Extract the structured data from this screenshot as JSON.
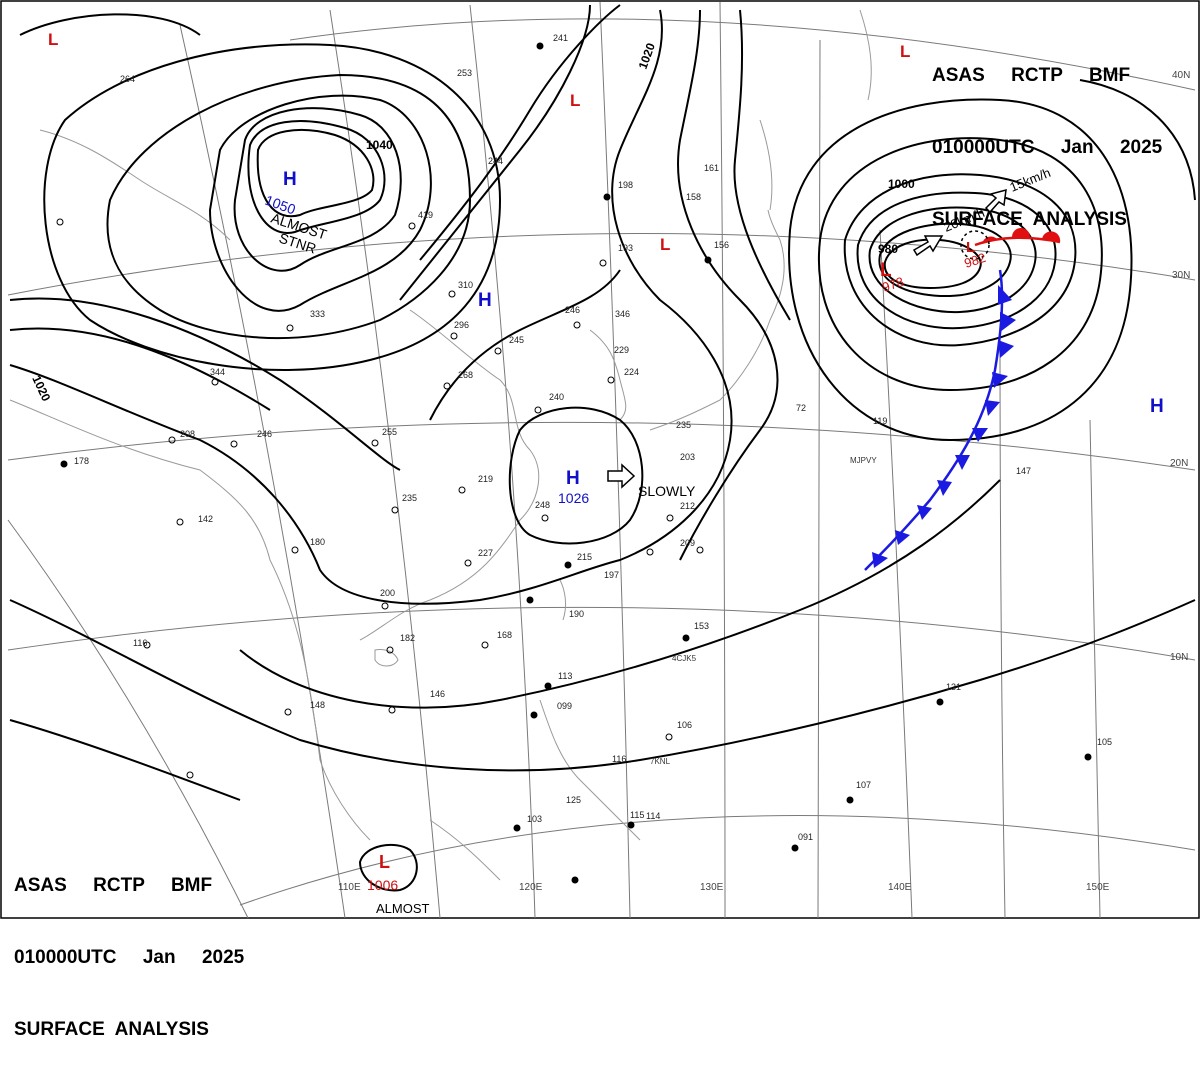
{
  "header": {
    "line1": "ASAS     RCTP     BMF",
    "line2": "010000UTC     Jan     2025",
    "line3": "SURFACE  ANALYSIS"
  },
  "pressure_centers": [
    {
      "type": "H",
      "value": "1050",
      "note": "ALMOST",
      "note2": "STNR",
      "color": "#1010c8"
    },
    {
      "type": "H",
      "value": "1026",
      "note": "SLOWLY",
      "color": "#1010c8"
    },
    {
      "type": "H",
      "value": "",
      "color": "#1010c8"
    },
    {
      "type": "H",
      "value": "",
      "color": "#1010c8"
    },
    {
      "type": "L",
      "value": "978",
      "color": "#d01010"
    },
    {
      "type": "L",
      "value": "982",
      "color": "#d01010"
    },
    {
      "type": "L",
      "value": "1006",
      "note": "ALMOST",
      "color": "#d01010"
    },
    {
      "type": "L",
      "value": "",
      "color": "#d01010"
    }
  ],
  "isobar_labels": [
    "1040",
    "1020",
    "1020",
    "1000",
    "980"
  ],
  "motion_labels": [
    "15km/h",
    "20km/h"
  ],
  "latitude_labels": [
    "40N",
    "30N",
    "20N",
    "10N"
  ],
  "longitude_labels": [
    "110E",
    "120E",
    "130E",
    "140E",
    "150E"
  ],
  "station_ids": [
    "MJPVY",
    "4CJK5",
    "7KNL"
  ],
  "station_values": [
    "264",
    "241",
    "253",
    "244",
    "198",
    "161",
    "158",
    "156",
    "419",
    "310",
    "296",
    "268",
    "240",
    "235",
    "203",
    "212",
    "209",
    "215",
    "197",
    "190",
    "168",
    "153",
    "146",
    "148",
    "113",
    "099",
    "116",
    "125",
    "103",
    "115",
    "114",
    "106",
    "131",
    "105",
    "107",
    "091",
    "182",
    "200",
    "180",
    "227",
    "248",
    "219",
    "235",
    "208",
    "178",
    "142",
    "344",
    "333",
    "255",
    "246",
    "245",
    "246",
    "229",
    "224",
    "193",
    "147",
    "119",
    "72",
    "116",
    "346"
  ],
  "colors": {
    "isobar": "#000000",
    "cold_front": "#1a1ae0",
    "warm_front": "#e01010",
    "grid": "#7a7a7a",
    "coast": "#9a9a9a"
  }
}
